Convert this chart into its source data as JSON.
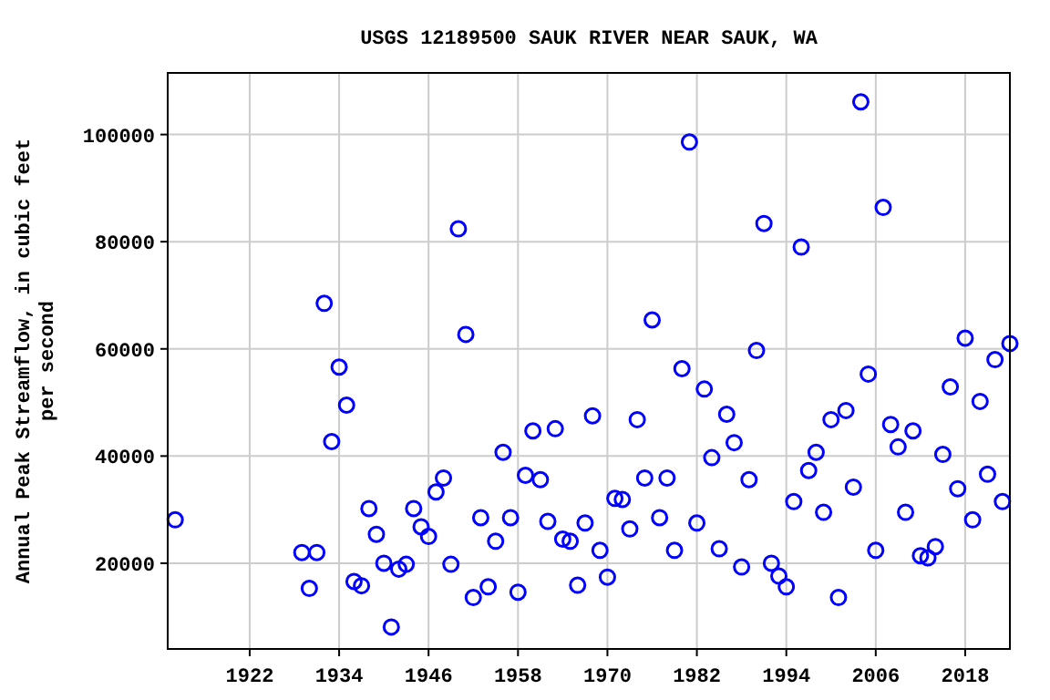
{
  "chart_data": {
    "type": "scatter",
    "title": "USGS 12189500 SAUK RIVER NEAR SAUK, WA",
    "ylabel": "Annual Peak Streamflow, in cubic feet per second",
    "x": [
      1912,
      1929,
      1930,
      1931,
      1932,
      1933,
      1934,
      1935,
      1936,
      1937,
      1938,
      1939,
      1940,
      1941,
      1942,
      1943,
      1944,
      1945,
      1946,
      1947,
      1948,
      1949,
      1950,
      1951,
      1952,
      1953,
      1954,
      1955,
      1956,
      1957,
      1958,
      1959,
      1960,
      1961,
      1962,
      1963,
      1964,
      1965,
      1966,
      1967,
      1968,
      1969,
      1970,
      1971,
      1972,
      1973,
      1974,
      1975,
      1976,
      1977,
      1978,
      1979,
      1980,
      1981,
      1982,
      1983,
      1984,
      1985,
      1986,
      1987,
      1988,
      1989,
      1990,
      1991,
      1992,
      1993,
      1994,
      1995,
      1996,
      1997,
      1998,
      1999,
      2000,
      2001,
      2002,
      2003,
      2004,
      2005,
      2006,
      2007,
      2008,
      2009,
      2010,
      2011,
      2012,
      2013,
      2014,
      2015,
      2016,
      2017,
      2018,
      2019,
      2020,
      2021,
      2022,
      2023,
      2024
    ],
    "series": [
      {
        "color": "#0000ff",
        "values": [
          28100,
          22000,
          15300,
          22000,
          68500,
          42700,
          56600,
          49500,
          16600,
          15800,
          30200,
          25400,
          20000,
          8100,
          18900,
          19800,
          30200,
          26800,
          25000,
          33300,
          35900,
          19800,
          82400,
          62700,
          13600,
          28500,
          15600,
          24100,
          40700,
          28500,
          14600,
          36400,
          44700,
          35600,
          27800,
          45100,
          24500,
          24100,
          15900,
          27500,
          47500,
          22400,
          17400,
          32100,
          31900,
          26400,
          46800,
          35900,
          65400,
          28500,
          35900,
          22400,
          56300,
          98600,
          27500,
          52500,
          39700,
          22700,
          47800,
          42500,
          19300,
          35600,
          59700,
          83400,
          20000,
          17600,
          15600,
          31500,
          79000,
          37300,
          40700,
          29500,
          46800,
          13600,
          48500,
          34200,
          106100,
          55300,
          22400,
          86400,
          45900,
          41700,
          29500,
          44700,
          21400,
          21000,
          23100,
          40300,
          52900,
          33900,
          62000,
          28100,
          50200,
          36600,
          58000,
          31500,
          61000
        ]
      }
    ],
    "xlim": [
      1911,
      2024
    ],
    "xticks": [
      1922,
      1934,
      1946,
      1958,
      1970,
      1982,
      1994,
      2006,
      2018
    ],
    "ylim": [
      4000,
      111500
    ],
    "yticks": [
      20000,
      40000,
      60000,
      80000,
      100000
    ],
    "grid": true,
    "marker": "circle"
  }
}
